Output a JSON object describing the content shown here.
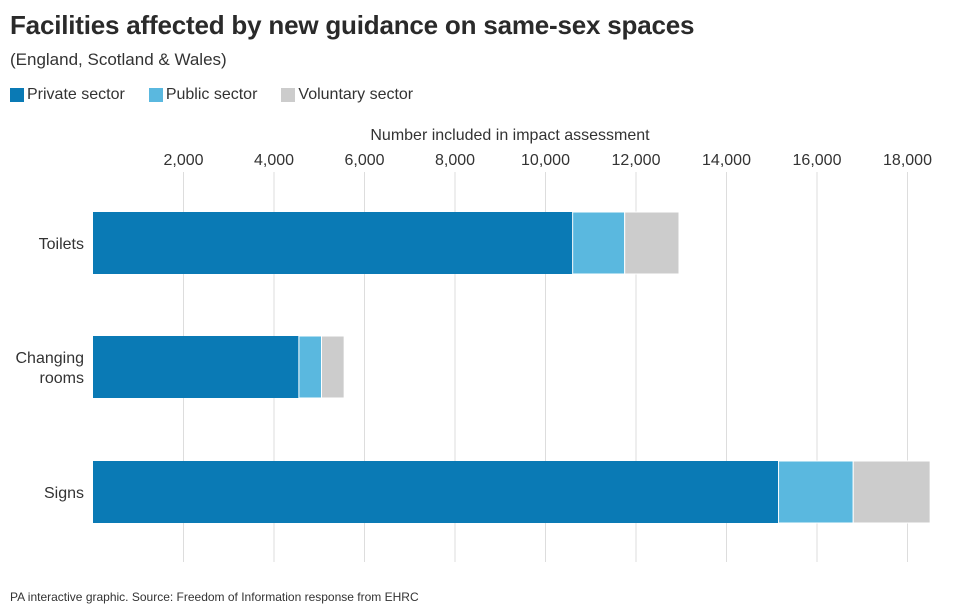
{
  "chart_data": {
    "type": "bar",
    "orientation": "horizontal",
    "stacked": true,
    "title": "Facilities affected by new guidance on same-sex spaces",
    "subtitle": "(England, Scotland & Wales)",
    "xlabel": "Number included in impact assessment",
    "xlim": [
      0,
      18500
    ],
    "xticks": [
      2000,
      4000,
      6000,
      8000,
      10000,
      12000,
      14000,
      16000,
      18000
    ],
    "xtick_labels": [
      "2,000",
      "4,000",
      "6,000",
      "8,000",
      "10,000",
      "12,000",
      "14,000",
      "16,000",
      "18,000"
    ],
    "grid": true,
    "legend_position": "top-left",
    "categories": [
      {
        "label_lines": [
          "Toilets"
        ]
      },
      {
        "label_lines": [
          "Changing",
          "rooms"
        ]
      },
      {
        "label_lines": [
          "Signs"
        ]
      }
    ],
    "series": [
      {
        "name": "Private sector",
        "color": "#0a7ab5",
        "values": [
          10600,
          4550,
          15150
        ]
      },
      {
        "name": "Public sector",
        "color": "#5ab8df",
        "values": [
          1150,
          500,
          1650
        ]
      },
      {
        "name": "Voluntary sector",
        "color": "#cccccc",
        "values": [
          1200,
          500,
          1700
        ]
      }
    ]
  },
  "footnote": "PA interactive graphic. Source: Freedom of Information response from EHRC"
}
